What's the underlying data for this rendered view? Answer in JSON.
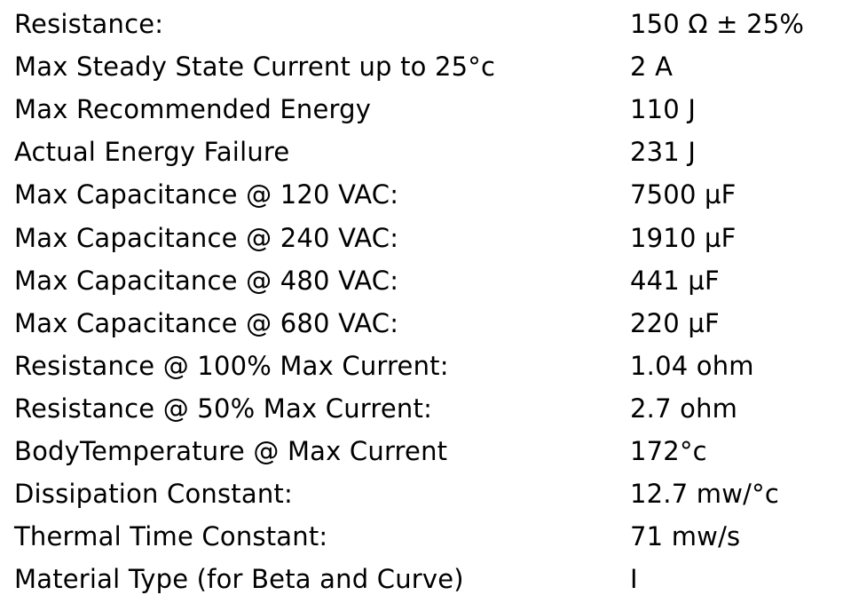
{
  "specs": [
    {
      "label": "Resistance:",
      "value": "150 Ω ± 25%"
    },
    {
      "label": "Max Steady State Current up to 25°c",
      "value": "2 A"
    },
    {
      "label": "Max Recommended Energy",
      "value": "110 J"
    },
    {
      "label": "Actual Energy Failure",
      "value": "231 J"
    },
    {
      "label": "Max Capacitance @ 120 VAC:",
      "value": "7500 µF"
    },
    {
      "label": "Max Capacitance @ 240 VAC:",
      "value": "1910 µF"
    },
    {
      "label": "Max Capacitance @ 480 VAC:",
      "value": "441 µF"
    },
    {
      "label": "Max Capacitance @ 680 VAC:",
      "value": "220 µF"
    },
    {
      "label": "Resistance @ 100% Max Current:",
      "value": "1.04 ohm"
    },
    {
      "label": "Resistance @ 50% Max Current:",
      "value": "2.7 ohm"
    },
    {
      "label": "BodyTemperature @ Max Current",
      "value": "172°c"
    },
    {
      "label": "Dissipation Constant:",
      "value": "12.7 mw/°c"
    },
    {
      "label": "Thermal Time Constant:",
      "value": "71 mw/s"
    },
    {
      "label": "Material Type (for Beta and Curve)",
      "value": "I"
    }
  ]
}
